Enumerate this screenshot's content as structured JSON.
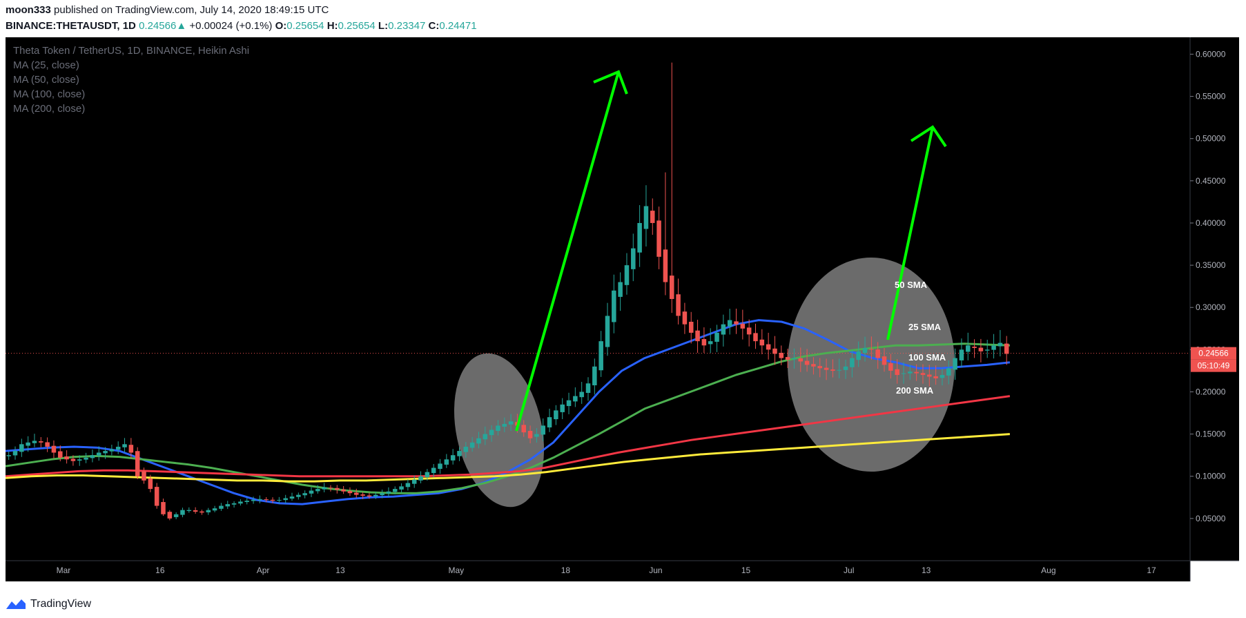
{
  "header": {
    "author": "moon333",
    "published": "published on TradingView.com, July 14, 2020 18:49:15 UTC",
    "symbol": "BINANCE:THETAUSDT, 1D",
    "price": "0.24566",
    "change_arrow": "▲",
    "change": "+0.00024 (+0.1%)",
    "open_label": "O:",
    "open": "0.25654",
    "high_label": "H:",
    "high": "0.25654",
    "low_label": "L:",
    "low": "0.23347",
    "close_label": "C:",
    "close": "0.24471"
  },
  "legend": {
    "title": "Theta Token / TetherUS, 1D, BINANCE, Heikin Ashi",
    "ma25": "MA (25, close)",
    "ma50": "MA (50, close)",
    "ma100": "MA (100, close)",
    "ma200": "MA (200, close)"
  },
  "footer": {
    "brand": "TradingView",
    "logo_icon": "tradingview-logo-icon"
  },
  "colors": {
    "background": "#000000",
    "up": "#26a69a",
    "down": "#ef5350",
    "ma25": "#2962ff",
    "ma50": "#4caf50",
    "ma100": "#f23645",
    "ma200": "#ffeb3b",
    "arrow": "#00ff00",
    "price_tag": "#ef5350"
  },
  "chart_data": {
    "type": "candlestick",
    "ylim": [
      0.0,
      0.62
    ],
    "y_ticks": [
      "0.60000",
      "0.55000",
      "0.50000",
      "0.45000",
      "0.40000",
      "0.35000",
      "0.30000",
      "0.25000",
      "0.20000",
      "0.15000",
      "0.10000",
      "0.05000"
    ],
    "x_ticks": [
      {
        "label": "Mar",
        "date": "2020-03-01"
      },
      {
        "label": "16",
        "date": "2020-03-16"
      },
      {
        "label": "Apr",
        "date": "2020-04-01"
      },
      {
        "label": "13",
        "date": "2020-04-13"
      },
      {
        "label": "May",
        "date": "2020-05-01"
      },
      {
        "label": "18",
        "date": "2020-05-18"
      },
      {
        "label": "Jun",
        "date": "2020-06-01"
      },
      {
        "label": "15",
        "date": "2020-06-15"
      },
      {
        "label": "Jul",
        "date": "2020-07-01"
      },
      {
        "label": "13",
        "date": "2020-07-13"
      },
      {
        "label": "Aug",
        "date": "2020-08-01"
      },
      {
        "label": "17",
        "date": "2020-08-17"
      }
    ],
    "x_range": [
      "2020-02-21",
      "2020-08-23"
    ],
    "last_price": "0.24566",
    "countdown": "05:10:49",
    "annotations": [
      "50 SMA",
      "25 SMA",
      "100 SMA",
      "200 SMA"
    ],
    "candle_closes": [
      0.125,
      0.13,
      0.138,
      0.14,
      0.142,
      0.14,
      0.135,
      0.128,
      0.122,
      0.12,
      0.118,
      0.12,
      0.122,
      0.125,
      0.128,
      0.13,
      0.132,
      0.135,
      0.138,
      0.128,
      0.1,
      0.095,
      0.085,
      0.065,
      0.055,
      0.05,
      0.055,
      0.06,
      0.06,
      0.058,
      0.057,
      0.06,
      0.062,
      0.065,
      0.067,
      0.068,
      0.07,
      0.071,
      0.072,
      0.073,
      0.072,
      0.071,
      0.072,
      0.074,
      0.076,
      0.078,
      0.08,
      0.083,
      0.085,
      0.087,
      0.086,
      0.084,
      0.082,
      0.08,
      0.078,
      0.077,
      0.076,
      0.078,
      0.08,
      0.082,
      0.085,
      0.088,
      0.092,
      0.096,
      0.1,
      0.105,
      0.11,
      0.115,
      0.12,
      0.125,
      0.13,
      0.135,
      0.14,
      0.145,
      0.15,
      0.155,
      0.16,
      0.162,
      0.165,
      0.16,
      0.152,
      0.145,
      0.15,
      0.16,
      0.17,
      0.178,
      0.185,
      0.19,
      0.195,
      0.2,
      0.21,
      0.23,
      0.26,
      0.29,
      0.32,
      0.33,
      0.35,
      0.37,
      0.4,
      0.42,
      0.4,
      0.36,
      0.33,
      0.31,
      0.29,
      0.28,
      0.27,
      0.26,
      0.255,
      0.26,
      0.27,
      0.28,
      0.285,
      0.28,
      0.275,
      0.268,
      0.26,
      0.255,
      0.25,
      0.245,
      0.24,
      0.238,
      0.24,
      0.236,
      0.232,
      0.23,
      0.228,
      0.226,
      0.225,
      0.226,
      0.23,
      0.24,
      0.248,
      0.252,
      0.25,
      0.24,
      0.232,
      0.225,
      0.22,
      0.222,
      0.224,
      0.222,
      0.22,
      0.218,
      0.216,
      0.22,
      0.228,
      0.24,
      0.25,
      0.255,
      0.252,
      0.248,
      0.25,
      0.255,
      0.258,
      0.245
    ],
    "series": [
      {
        "name": "MA (25, close)",
        "values": [
          0.13,
          0.132,
          0.134,
          0.135,
          0.134,
          0.13,
          0.12,
          0.11,
          0.1,
          0.09,
          0.08,
          0.072,
          0.068,
          0.067,
          0.07,
          0.073,
          0.075,
          0.076,
          0.078,
          0.08,
          0.085,
          0.093,
          0.105,
          0.12,
          0.14,
          0.17,
          0.2,
          0.225,
          0.24,
          0.25,
          0.26,
          0.27,
          0.28,
          0.285,
          0.283,
          0.275,
          0.262,
          0.248,
          0.24,
          0.235,
          0.228,
          0.228,
          0.23,
          0.232,
          0.235
        ]
      },
      {
        "name": "MA (50, close)",
        "values": [
          0.112,
          0.116,
          0.12,
          0.123,
          0.124,
          0.123,
          0.12,
          0.117,
          0.114,
          0.11,
          0.105,
          0.1,
          0.095,
          0.09,
          0.086,
          0.083,
          0.081,
          0.08,
          0.08,
          0.082,
          0.086,
          0.092,
          0.1,
          0.11,
          0.122,
          0.136,
          0.15,
          0.165,
          0.18,
          0.19,
          0.2,
          0.21,
          0.22,
          0.228,
          0.236,
          0.242,
          0.246,
          0.249,
          0.252,
          0.255,
          0.255,
          0.256,
          0.257,
          0.256,
          0.255
        ]
      },
      {
        "name": "MA (100, close)",
        "values": [
          0.1,
          0.102,
          0.104,
          0.106,
          0.107,
          0.107,
          0.106,
          0.105,
          0.104,
          0.103,
          0.102,
          0.101,
          0.1,
          0.1,
          0.1,
          0.1,
          0.1,
          0.1,
          0.101,
          0.102,
          0.104,
          0.106,
          0.11,
          0.116,
          0.122,
          0.128,
          0.133,
          0.138,
          0.143,
          0.147,
          0.151,
          0.155,
          0.159,
          0.163,
          0.167,
          0.171,
          0.175,
          0.179,
          0.183,
          0.187,
          0.191,
          0.195
        ]
      },
      {
        "name": "MA (200, close)",
        "values": [
          0.098,
          0.1,
          0.101,
          0.101,
          0.1,
          0.099,
          0.098,
          0.097,
          0.096,
          0.095,
          0.095,
          0.094,
          0.094,
          0.095,
          0.095,
          0.096,
          0.097,
          0.098,
          0.099,
          0.1,
          0.102,
          0.105,
          0.109,
          0.113,
          0.117,
          0.12,
          0.123,
          0.126,
          0.128,
          0.13,
          0.132,
          0.134,
          0.136,
          0.138,
          0.14,
          0.142,
          0.144,
          0.146,
          0.148,
          0.15
        ]
      }
    ]
  }
}
